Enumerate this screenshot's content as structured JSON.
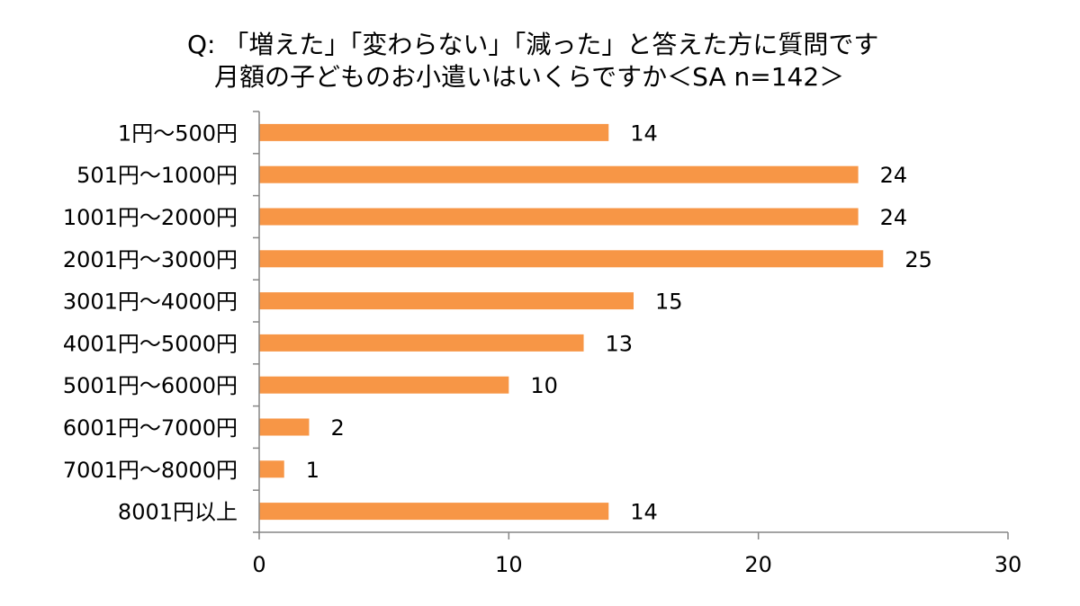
{
  "chart_data": {
    "type": "bar",
    "orientation": "horizontal",
    "title_lines": [
      "Q: 「増えた」「変わらない」「減った」と答えた方に質問です",
      "月額の子どものお小遣いはいくらですか＜SA n=142＞"
    ],
    "categories": [
      "1円～500円",
      "501円～1000円",
      "1001円～2000円",
      "2001円～3000円",
      "3001円～4000円",
      "4001円～5000円",
      "5001円～6000円",
      "6001円～7000円",
      "7001円～8000円",
      "8001円以上"
    ],
    "values": [
      14,
      24,
      24,
      25,
      15,
      13,
      10,
      2,
      1,
      14
    ],
    "xlim": [
      0,
      30
    ],
    "xticks": [
      0,
      10,
      20,
      30
    ],
    "bar_color": "#F79646",
    "grid": false,
    "legend": "none"
  }
}
